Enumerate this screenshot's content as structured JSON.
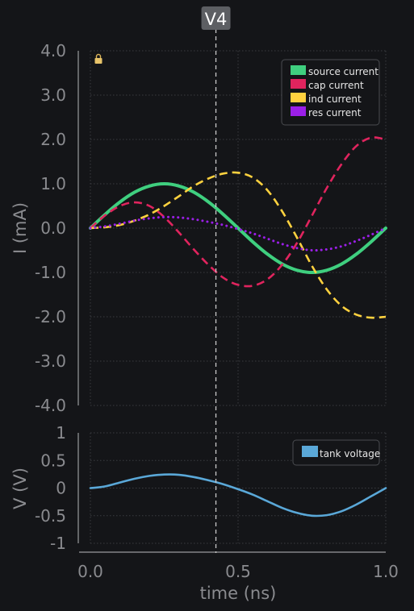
{
  "chart_data": [
    {
      "type": "line",
      "ylabel": "I (mA)",
      "xlim": [
        0.0,
        1.0
      ],
      "ylim": [
        -4.0,
        4.0
      ],
      "yticks": [
        "4.0",
        "3.0",
        "2.0",
        "1.0",
        "0.0",
        "-1.0",
        "-2.0",
        "-3.0",
        "-4.0"
      ],
      "grid": true,
      "legend_position": "top-right",
      "lock_icon": "lock-icon",
      "series": [
        {
          "name": "source current",
          "color": "#3fcf7f",
          "style": "solid",
          "x": [
            0,
            0.05,
            0.1,
            0.15,
            0.2,
            0.25,
            0.3,
            0.35,
            0.4,
            0.45,
            0.5,
            0.55,
            0.6,
            0.65,
            0.7,
            0.75,
            0.8,
            0.85,
            0.9,
            0.95,
            1.0
          ],
          "y": [
            0,
            0.31,
            0.59,
            0.81,
            0.95,
            1.0,
            0.95,
            0.81,
            0.59,
            0.31,
            0,
            -0.31,
            -0.59,
            -0.81,
            -0.95,
            -1.0,
            -0.95,
            -0.81,
            -0.59,
            -0.31,
            0
          ]
        },
        {
          "name": "cap current",
          "color": "#e0245e",
          "style": "dashed",
          "x": [
            0,
            0.05,
            0.1,
            0.15,
            0.2,
            0.25,
            0.3,
            0.35,
            0.4,
            0.45,
            0.5,
            0.55,
            0.6,
            0.65,
            0.7,
            0.75,
            0.8,
            0.85,
            0.9,
            0.95,
            1.0
          ],
          "y": [
            0,
            0.29,
            0.5,
            0.58,
            0.5,
            0.25,
            -0.1,
            -0.48,
            -0.83,
            -1.12,
            -1.28,
            -1.3,
            -1.15,
            -0.82,
            -0.33,
            0.28,
            0.9,
            1.44,
            1.85,
            2.04,
            2.0
          ]
        },
        {
          "name": "ind current",
          "color": "#ffd23f",
          "style": "dashed",
          "x": [
            0,
            0.05,
            0.1,
            0.15,
            0.2,
            0.25,
            0.3,
            0.35,
            0.4,
            0.45,
            0.5,
            0.55,
            0.6,
            0.65,
            0.7,
            0.75,
            0.8,
            0.85,
            0.9,
            0.95,
            1.0
          ],
          "y": [
            0,
            0.02,
            0.07,
            0.17,
            0.31,
            0.5,
            0.72,
            0.95,
            1.12,
            1.23,
            1.25,
            1.14,
            0.85,
            0.37,
            -0.22,
            -0.85,
            -1.38,
            -1.75,
            -1.95,
            -2.02,
            -2.0
          ]
        },
        {
          "name": "res current",
          "color": "#9b1fe8",
          "style": "dotted",
          "x": [
            0,
            0.05,
            0.1,
            0.15,
            0.2,
            0.25,
            0.3,
            0.35,
            0.4,
            0.45,
            0.5,
            0.55,
            0.6,
            0.65,
            0.7,
            0.75,
            0.8,
            0.85,
            0.9,
            0.95,
            1.0
          ],
          "y": [
            0,
            0.04,
            0.1,
            0.17,
            0.22,
            0.25,
            0.24,
            0.2,
            0.14,
            0.07,
            -0.02,
            -0.12,
            -0.24,
            -0.36,
            -0.45,
            -0.5,
            -0.48,
            -0.41,
            -0.29,
            -0.15,
            0
          ]
        }
      ]
    },
    {
      "type": "line",
      "xlabel": "time (ns)",
      "ylabel": "V (V)",
      "xlim": [
        0.0,
        1.0
      ],
      "ylim": [
        -1,
        1
      ],
      "yticks": [
        "1",
        "0.5",
        "0",
        "-0.5",
        "-1"
      ],
      "xticks": [
        "0.0",
        "0.5",
        "1.0"
      ],
      "grid": true,
      "legend_position": "top-right",
      "series": [
        {
          "name": "tank voltage",
          "color": "#5aa8d8",
          "style": "solid",
          "x": [
            0,
            0.05,
            0.1,
            0.15,
            0.2,
            0.25,
            0.3,
            0.35,
            0.4,
            0.45,
            0.5,
            0.55,
            0.6,
            0.65,
            0.7,
            0.75,
            0.8,
            0.85,
            0.9,
            0.95,
            1.0
          ],
          "y": [
            0,
            0.03,
            0.1,
            0.17,
            0.22,
            0.245,
            0.24,
            0.2,
            0.14,
            0.07,
            -0.02,
            -0.12,
            -0.24,
            -0.36,
            -0.45,
            -0.5,
            -0.49,
            -0.42,
            -0.3,
            -0.15,
            0
          ]
        }
      ]
    }
  ],
  "cursor": {
    "label": "V4",
    "x": 0.425
  }
}
